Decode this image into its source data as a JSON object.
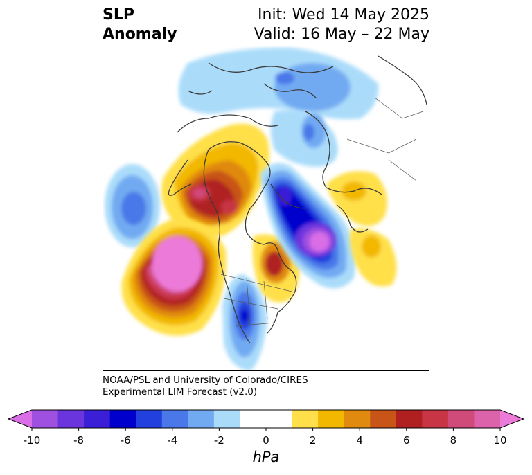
{
  "title": {
    "line1": "SLP",
    "line2": "Anomaly",
    "init": "Init: Wed 14 May 2025",
    "valid": "Valid: 16 May – 22 May"
  },
  "credit": {
    "line1": "NOAA/PSL and University of Colorado/CIRES",
    "line2": "Experimental LIM Forecast (v2.0)"
  },
  "colorbar": {
    "unit": "hPa",
    "colors": [
      "#d96ee6",
      "#a050e0",
      "#6a35dd",
      "#3a1fd6",
      "#0000cc",
      "#2240dd",
      "#4a78e8",
      "#72aaf2",
      "#aadcfa",
      "#ffffff",
      "#ffffff",
      "#ffe04a",
      "#f2b800",
      "#e08a10",
      "#c85418",
      "#b02020",
      "#c83545",
      "#d04a7a",
      "#dc62aa",
      "#ec7ad8"
    ],
    "ticks": [
      "-10",
      "-8",
      "-6",
      "-4",
      "-2",
      "0",
      "2",
      "4",
      "6",
      "8",
      "10"
    ]
  }
}
